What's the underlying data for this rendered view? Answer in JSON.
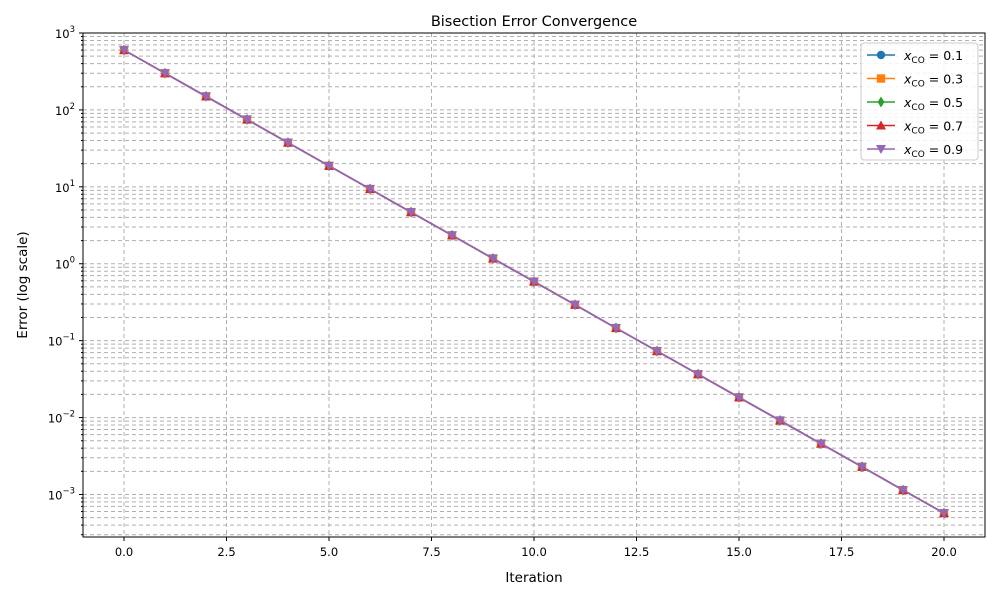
{
  "chart_data": {
    "type": "line",
    "title": "Bisection Error Convergence",
    "xlabel": "Iteration",
    "ylabel": "Error (log scale)",
    "xlim": [
      -1,
      21
    ],
    "ylim": [
      0.00028,
      1000
    ],
    "y_scale": "log",
    "grid": true,
    "legend_position": "top-right",
    "x_ticks": [
      0,
      2.5,
      5,
      7.5,
      10,
      12.5,
      15,
      17.5,
      20
    ],
    "x_tick_labels": [
      "0.0",
      "2.5",
      "5.0",
      "7.5",
      "10.0",
      "12.5",
      "15.0",
      "17.5",
      "20.0"
    ],
    "y_ticks": [
      0.001,
      0.01,
      0.1,
      1,
      10,
      100,
      1000
    ],
    "y_tick_exponents": [
      "−3",
      "−2",
      "−1",
      "0",
      "1",
      "2",
      "3"
    ],
    "y_tick_base": "10",
    "x": [
      0,
      1,
      2,
      3,
      4,
      5,
      6,
      7,
      8,
      9,
      10,
      11,
      12,
      13,
      14,
      15,
      16,
      17,
      18,
      19,
      20
    ],
    "series": [
      {
        "legend_var": "x",
        "legend_sub": "CO",
        "legend_value": "= 0.1",
        "color": "#1f77b4",
        "marker": "circle",
        "values": [
          600,
          300,
          150,
          75,
          37.5,
          18.75,
          9.375,
          4.6875,
          2.34,
          1.17,
          0.586,
          0.293,
          0.146,
          0.0732,
          0.0366,
          0.0183,
          0.00916,
          0.00458,
          0.00229,
          0.00114,
          0.000572
        ]
      },
      {
        "legend_var": "x",
        "legend_sub": "CO",
        "legend_value": "= 0.3",
        "color": "#ff7f0e",
        "marker": "square",
        "values": [
          600,
          300,
          150,
          75,
          37.5,
          18.75,
          9.375,
          4.6875,
          2.34,
          1.17,
          0.586,
          0.293,
          0.146,
          0.0732,
          0.0366,
          0.0183,
          0.00916,
          0.00458,
          0.00229,
          0.00114,
          0.000572
        ]
      },
      {
        "legend_var": "x",
        "legend_sub": "CO",
        "legend_value": "= 0.5",
        "color": "#2ca02c",
        "marker": "thin-diamond",
        "values": [
          600,
          300,
          150,
          75,
          37.5,
          18.75,
          9.375,
          4.6875,
          2.34,
          1.17,
          0.586,
          0.293,
          0.146,
          0.0732,
          0.0366,
          0.0183,
          0.00916,
          0.00458,
          0.00229,
          0.00114,
          0.000572
        ]
      },
      {
        "legend_var": "x",
        "legend_sub": "CO",
        "legend_value": "= 0.7",
        "color": "#d62728",
        "marker": "triangle-up",
        "values": [
          600,
          300,
          150,
          75,
          37.5,
          18.75,
          9.375,
          4.6875,
          2.34,
          1.17,
          0.586,
          0.293,
          0.146,
          0.0732,
          0.0366,
          0.0183,
          0.00916,
          0.00458,
          0.00229,
          0.00114,
          0.000572
        ]
      },
      {
        "legend_var": "x",
        "legend_sub": "CO",
        "legend_value": "= 0.9",
        "color": "#9467bd",
        "marker": "triangle-down",
        "values": [
          600,
          300,
          150,
          75,
          37.5,
          18.75,
          9.375,
          4.6875,
          2.34,
          1.17,
          0.586,
          0.293,
          0.146,
          0.0732,
          0.0366,
          0.0183,
          0.00916,
          0.00458,
          0.00229,
          0.00114,
          0.000572
        ]
      }
    ]
  }
}
